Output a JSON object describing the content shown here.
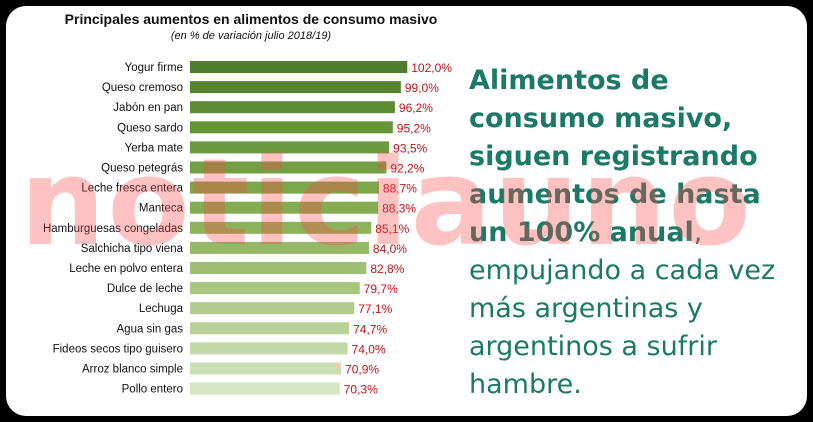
{
  "chart_data": {
    "type": "bar",
    "orientation": "horizontal",
    "title": "Principales aumentos en alimentos de consumo masivo",
    "subtitle": "(en % de variación julio 2018/19)",
    "categories": [
      "Yogur firme",
      "Queso cremoso",
      "Jabón en pan",
      "Queso sardo",
      "Yerba mate",
      "Queso petegrás",
      "Leche fresca entera",
      "Manteca",
      "Hamburguesas congeladas",
      "Salchicha tipo viena",
      "Leche en polvo entera",
      "Dulce de leche",
      "Lechuga",
      "Agua sin gas",
      "Fideos secos tipo guisero",
      "Arroz blanco simple",
      "Pollo entero"
    ],
    "values": [
      102.0,
      99.0,
      96.2,
      95.2,
      93.5,
      92.2,
      88.7,
      88.3,
      85.1,
      84.0,
      82.8,
      79.7,
      77.1,
      74.7,
      74.0,
      70.9,
      70.3
    ],
    "value_labels": [
      "102,0%",
      "99,0%",
      "96,2%",
      "95,2%",
      "93,5%",
      "92,2%",
      "88,7%",
      "88,3%",
      "85,1%",
      "84,0%",
      "82,8%",
      "79,7%",
      "77,1%",
      "74,7%",
      "74,0%",
      "70,9%",
      "70,3%"
    ],
    "bar_colors": [
      "#4e7d2e",
      "#55832f",
      "#5e8c35",
      "#65933a",
      "#6c9a3e",
      "#73a043",
      "#7ca64a",
      "#84ac51",
      "#8cb25b",
      "#95b867",
      "#9ebf73",
      "#a8c680",
      "#b1cc8d",
      "#bad29a",
      "#c3d8a8",
      "#ccdeb6",
      "#d5e4c3"
    ],
    "value_label_color": "#c0141c",
    "xlabel": "",
    "ylabel": "",
    "grid": false,
    "legend": "none"
  },
  "side_text": {
    "bold_text": "Alimentos de consumo masivo, siguen registrando aumentos de hasta un 100% anual",
    "regular_text": ", empujando a cada vez más argentinas y argentinos a sufrir hambre."
  },
  "watermark": "noticiauno",
  "colors": {
    "background": "#000000",
    "card": "#ffffff",
    "side_text": "#1b7a66",
    "watermark": "#ff4646"
  }
}
